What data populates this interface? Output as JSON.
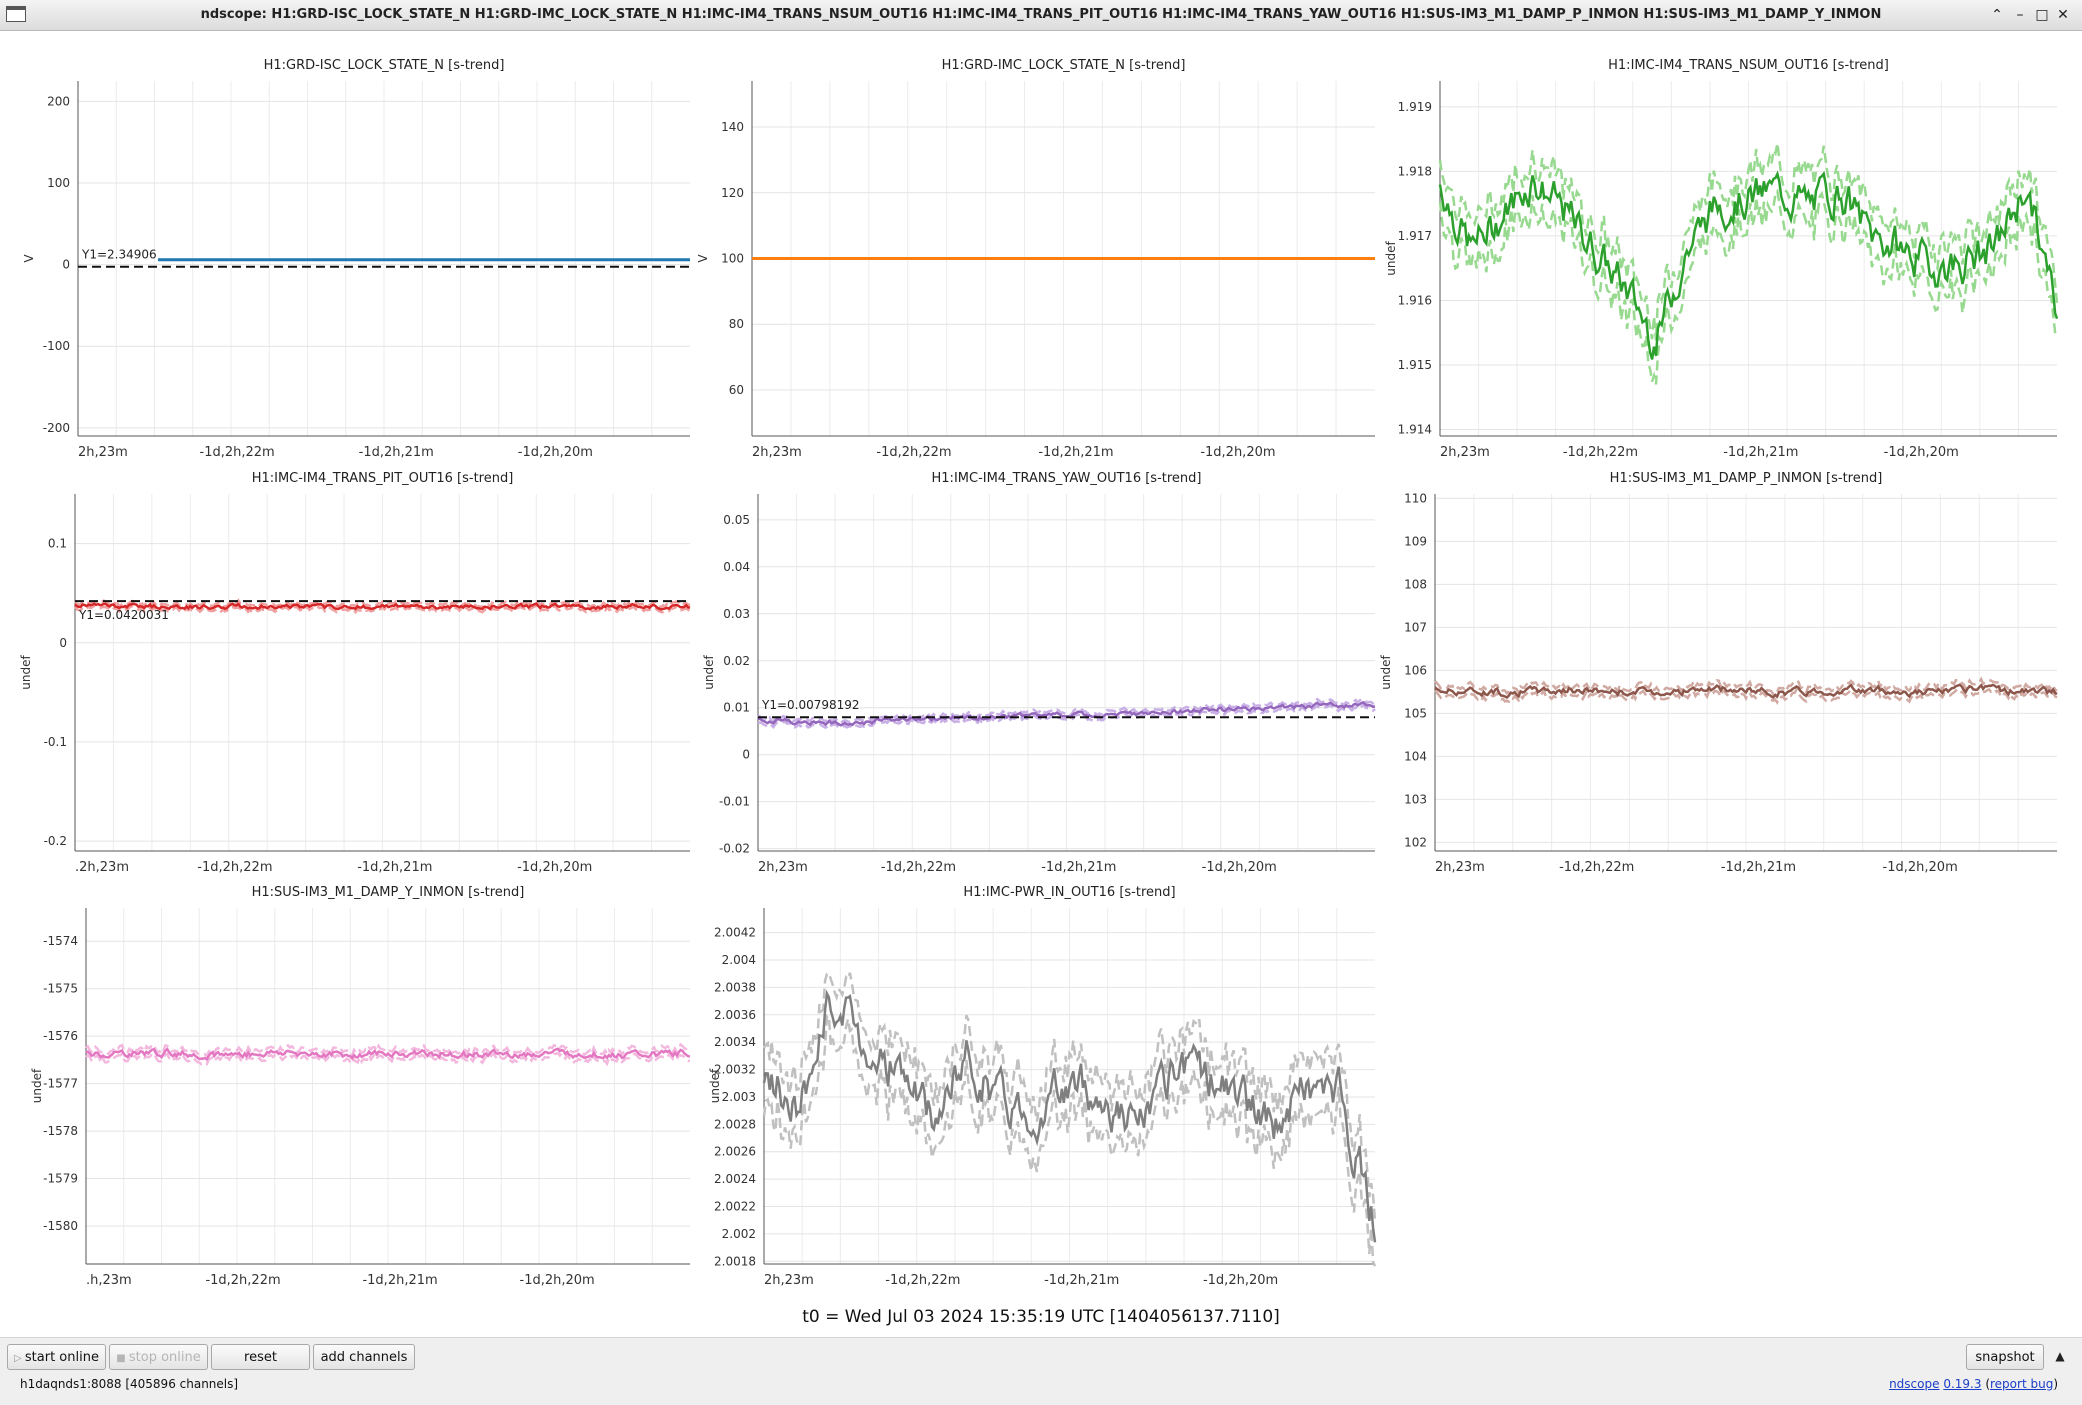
{
  "window": {
    "title": "ndscope: H1:GRD-ISC_LOCK_STATE_N H1:GRD-IMC_LOCK_STATE_N H1:IMC-IM4_TRANS_NSUM_OUT16 H1:IMC-IM4_TRANS_PIT_OUT16 H1:IMC-IM4_TRANS_YAW_OUT16 H1:SUS-IM3_M1_DAMP_P_INMON H1:SUS-IM3_M1_DAMP_Y_INMON",
    "controls": {
      "minimize": "–",
      "maximize": "□",
      "close": "✕",
      "shade": "⌃"
    }
  },
  "plots": [
    {
      "title": "H1:GRD-ISC_LOCK_STATE_N [s-trend]",
      "ylabel": "V",
      "color": "#1f77b4",
      "style": "flat",
      "yticks": [
        200,
        100,
        0,
        -100,
        -200
      ],
      "ylim": [
        -210,
        225
      ],
      "value": 6,
      "cursor": {
        "label": "Y1=2.34906",
        "y": 2.34906
      },
      "xticks": [
        "2h,23m",
        "-1d,2h,22m",
        "-1d,2h,21m",
        "-1d,2h,20m"
      ]
    },
    {
      "title": "H1:GRD-IMC_LOCK_STATE_N [s-trend]",
      "ylabel": "V",
      "color": "#ff7f0e",
      "style": "flat",
      "yticks": [
        140,
        120,
        100,
        80,
        60
      ],
      "ylim": [
        46,
        154
      ],
      "value": 100,
      "xticks": [
        "2h,23m",
        "-1d,2h,22m",
        "-1d,2h,21m",
        "-1d,2h,20m"
      ]
    },
    {
      "title": "H1:IMC-IM4_TRANS_NSUM_OUT16 [s-trend]",
      "ylabel": "undef",
      "color": "#2ca02c",
      "band_color": "#98d990",
      "style": "noisy",
      "yticks": [
        1.919,
        1.918,
        1.917,
        1.916,
        1.915,
        1.914
      ],
      "ylim": [
        1.9139,
        1.9194
      ],
      "mean": [
        1.9178,
        1.9168,
        1.9173,
        1.9179,
        1.9174,
        1.9168,
        1.9162,
        1.9154,
        1.9168,
        1.9175,
        1.9176,
        1.9177,
        1.9175,
        1.9177,
        1.917,
        1.9168,
        1.9165,
        1.9166,
        1.9168,
        1.9178,
        1.9158
      ],
      "spread": 0.0004,
      "seed": 7,
      "xticks": [
        "2h,23m",
        "-1d,2h,22m",
        "-1d,2h,21m",
        "-1d,2h,20m"
      ]
    },
    {
      "title": "H1:IMC-IM4_TRANS_PIT_OUT16 [s-trend]",
      "ylabel": "undef",
      "color": "#d62728",
      "band_color": "#f0a0a0",
      "style": "noisy",
      "yticks": [
        0.1,
        0,
        -0.1,
        -0.2
      ],
      "ylim": [
        -0.21,
        0.15
      ],
      "mean": [
        0.038,
        0.037,
        0.036,
        0.037,
        0.036,
        0.037,
        0.036,
        0.037,
        0.036,
        0.037,
        0.036
      ],
      "spread": 0.003,
      "seed": 11,
      "cursor": {
        "label": "Y1=0.0420031",
        "y": 0.0420031
      },
      "xticks": [
        ".2h,23m",
        "-1d,2h,22m",
        "-1d,2h,21m",
        "-1d,2h,20m"
      ]
    },
    {
      "title": "H1:IMC-IM4_TRANS_YAW_OUT16 [s-trend]",
      "ylabel": "undef",
      "color": "#9467bd",
      "band_color": "#c8b0e6",
      "style": "noisy",
      "yticks": [
        0.05,
        0.04,
        0.03,
        0.02,
        0.01,
        0,
        -0.01,
        -0.02
      ],
      "ylim": [
        -0.0205,
        0.0555
      ],
      "mean": [
        0.0075,
        0.0068,
        0.007,
        0.0075,
        0.008,
        0.0083,
        0.0085,
        0.009,
        0.0095,
        0.01,
        0.0105,
        0.0107
      ],
      "spread": 0.0007,
      "seed": 13,
      "cursor": {
        "label": "Y1=0.00798192",
        "y": 0.00798192
      },
      "xticks": [
        "2h,23m",
        "-1d,2h,22m",
        "-1d,2h,21m",
        "-1d,2h,20m"
      ]
    },
    {
      "title": "H1:SUS-IM3_M1_DAMP_P_INMON [s-trend]",
      "ylabel": "undef",
      "color": "#8c564b",
      "band_color": "#d0aaa2",
      "style": "noisy",
      "yticks": [
        110,
        109,
        108,
        107,
        106,
        105,
        104,
        103,
        102
      ],
      "ylim": [
        101.8,
        110.1
      ],
      "mean": [
        105.55,
        105.5,
        105.55,
        105.5,
        105.55,
        105.5,
        105.55,
        105.5,
        105.55,
        105.5
      ],
      "spread": 0.12,
      "seed": 17,
      "xticks": [
        "2h,23m",
        "-1d,2h,22m",
        "-1d,2h,21m",
        "-1d,2h,20m"
      ]
    },
    {
      "title": "H1:SUS-IM3_M1_DAMP_Y_INMON [s-trend]",
      "ylabel": "undef",
      "color": "#e377c2",
      "band_color": "#f2b8de",
      "style": "noisy",
      "yticks": [
        -1574,
        -1575,
        -1576,
        -1577,
        -1578,
        -1579,
        -1580
      ],
      "ylim": [
        -1580.8,
        -1573.3
      ],
      "mean": [
        -1576.4,
        -1576.35,
        -1576.4,
        -1576.35,
        -1576.4,
        -1576.35,
        -1576.4,
        -1576.35,
        -1576.4,
        -1576.35
      ],
      "spread": 0.1,
      "seed": 19,
      "xticks": [
        ".h,23m",
        "-1d,2h,22m",
        "-1d,2h,21m",
        "-1d,2h,20m"
      ]
    },
    {
      "title": "H1:IMC-PWR_IN_OUT16 [s-trend]",
      "ylabel": "undef",
      "color": "#7f7f7f",
      "band_color": "#c0c0c0",
      "style": "noisy",
      "yticks": [
        2.0042,
        2.004,
        2.0038,
        2.0036,
        2.0034,
        2.0032,
        2.003,
        2.0028,
        2.0026,
        2.0024,
        2.0022,
        2.002,
        2.0018
      ],
      "ylim": [
        2.00178,
        2.00438
      ],
      "mean": [
        2.0032,
        2.0029,
        2.0037,
        2.0034,
        2.0032,
        2.0028,
        2.0033,
        2.003,
        2.0029,
        2.0031,
        2.003,
        2.0028,
        2.0031,
        2.0032,
        2.003,
        2.0028,
        2.0031,
        2.003,
        2.0021
      ],
      "spread": 0.00022,
      "seed": 23,
      "xticks": [
        "2h,23m",
        "-1d,2h,22m",
        "-1d,2h,21m",
        "-1d,2h,20m"
      ]
    }
  ],
  "t0": "t0 = Wed Jul 03 2024 15:35:19 UTC [1404056137.7110]",
  "toolbar": {
    "start_online": "start online",
    "stop_online": "stop online",
    "reset": "reset",
    "add_channels": "add channels",
    "snapshot": "snapshot",
    "collapse_icon": "▲"
  },
  "status": {
    "server": "h1daqnds1:8088  [405896 channels]",
    "app_name": "ndscope",
    "version": "0.19.3",
    "report_bug": "report bug"
  }
}
